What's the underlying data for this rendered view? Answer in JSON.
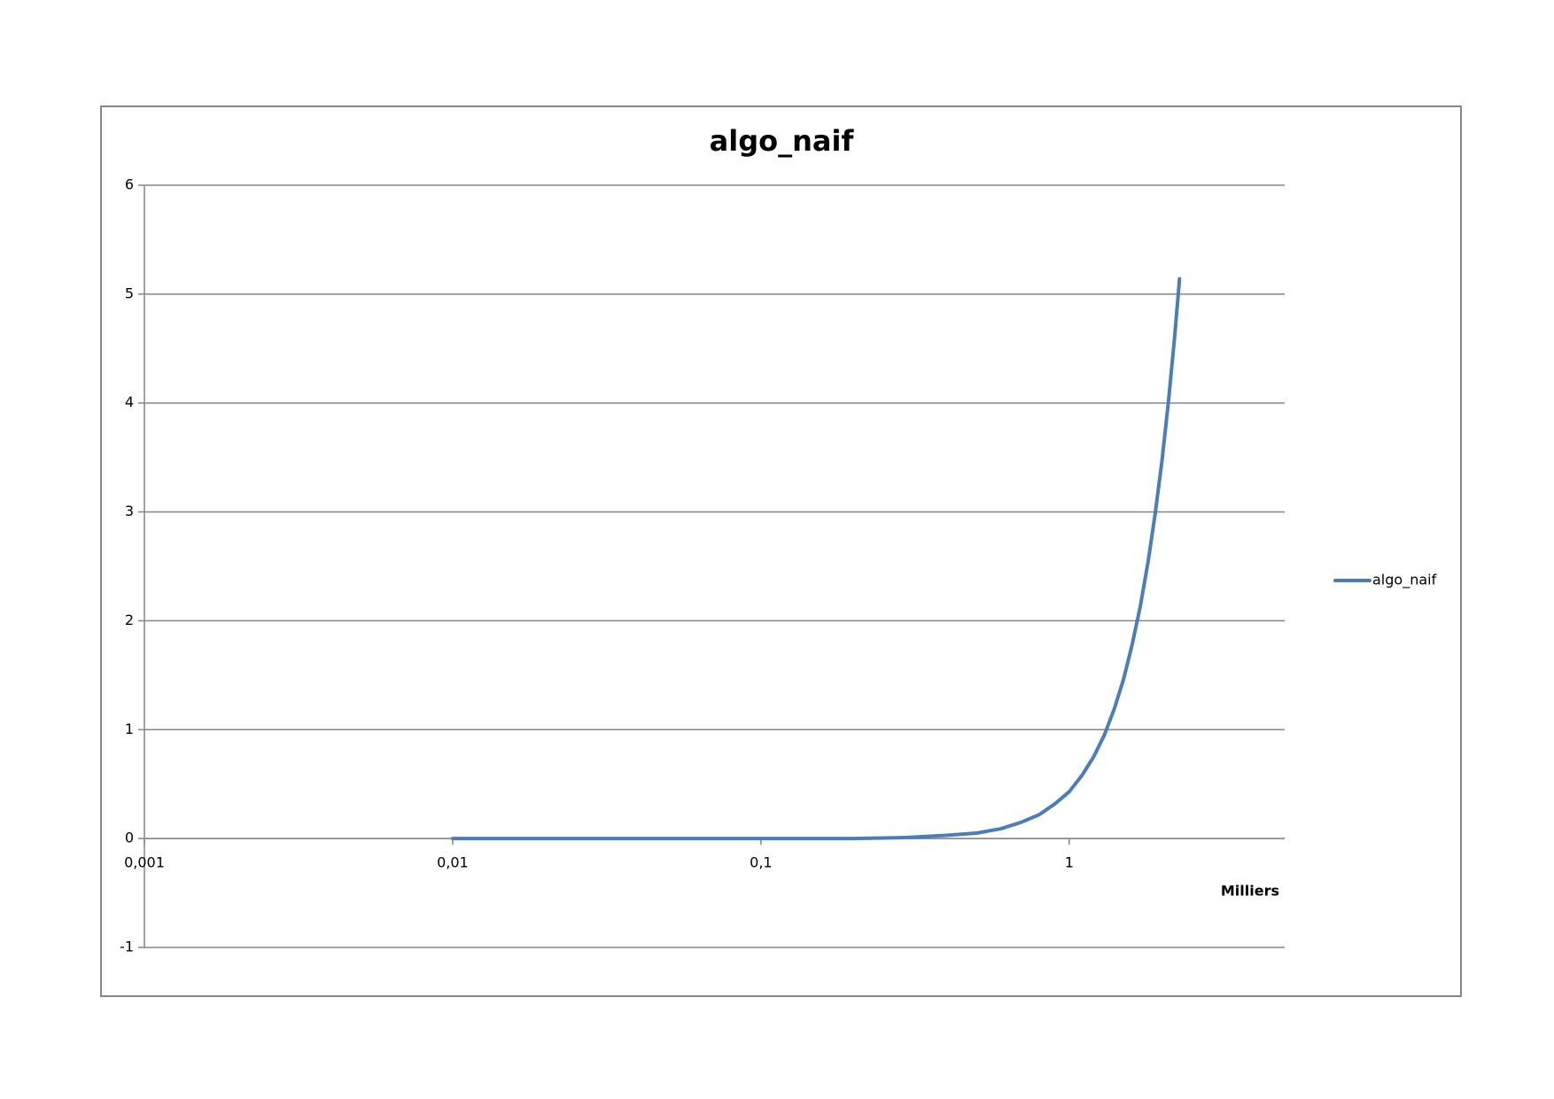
{
  "chart_data": {
    "type": "line",
    "title": "algo_naif",
    "x_label": "Milliers",
    "x": [
      0.01,
      0.02,
      0.05,
      0.1,
      0.2,
      0.3,
      0.4,
      0.5,
      0.6,
      0.7,
      0.8,
      0.9,
      1,
      1.1,
      1.2,
      1.3,
      1.4,
      1.5,
      1.6,
      1.7,
      1.8,
      1.9,
      2,
      2.1,
      2.2,
      2.28
    ],
    "series": [
      {
        "name": "algo_naif",
        "color": "#4a7ebb",
        "values": [
          0,
          0,
          0,
          0,
          0,
          0.01,
          0.03,
          0.05,
          0.09,
          0.15,
          0.22,
          0.32,
          0.43,
          0.58,
          0.75,
          0.95,
          1.19,
          1.46,
          1.78,
          2.13,
          2.53,
          2.98,
          3.47,
          4.02,
          4.62,
          5.14
        ]
      }
    ],
    "xscale": "log",
    "xlim": [
      0.001,
      5
    ],
    "xticks": [
      {
        "value": 0.001,
        "label": "0,001"
      },
      {
        "value": 0.01,
        "label": "0,01"
      },
      {
        "value": 0.1,
        "label": "0,1"
      },
      1
    ],
    "ylim": [
      -1,
      6
    ],
    "yticks": [
      -1,
      0,
      1,
      2,
      3,
      4,
      5,
      6
    ],
    "grid": true,
    "legend": "right"
  }
}
